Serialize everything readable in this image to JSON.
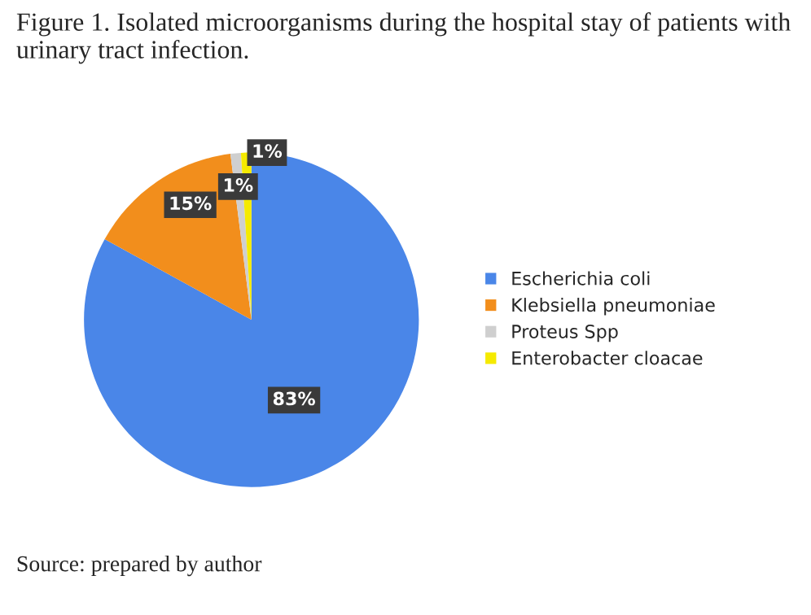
{
  "chart_data": {
    "type": "pie",
    "title": "Figure 1. Isolated microorganisms during the hospital stay of patients with urinary tract infection.",
    "categories": [
      "Escherichia coli",
      "Klebsiella pneumoniae",
      "Proteus Spp",
      "Enterobacter cloacae"
    ],
    "values": [
      83,
      15,
      1,
      1
    ],
    "colors": [
      "#4a86e8",
      "#f28e1c",
      "#cfcfcf",
      "#f5ea00"
    ],
    "value_labels": [
      "83%",
      "15%",
      "1%",
      "1%"
    ],
    "legend": "right",
    "annotations": [
      "Source: prepared by author"
    ]
  }
}
